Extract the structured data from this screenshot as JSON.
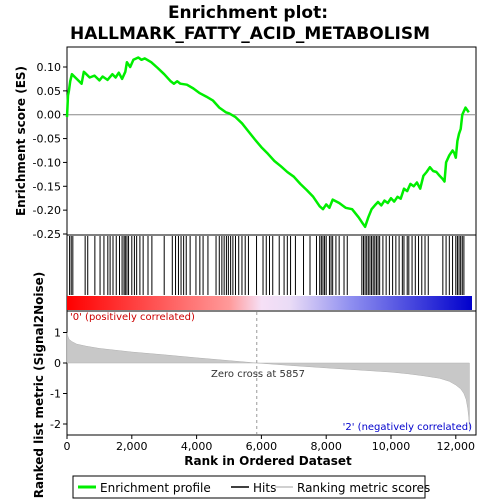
{
  "chart_data": {
    "type": "line",
    "title_line1": "Enrichment plot:",
    "title_line2": "HALLMARK_FATTY_ACID_METABOLISM",
    "es_ylabel": "Enrichment score (ES)",
    "metric_ylabel": "Ranked list metric (Signal2Noise)",
    "xlabel": "Rank in Ordered Dataset",
    "xlim": [
      0,
      12500
    ],
    "es_ylim": [
      -0.25,
      0.1
    ],
    "metric_ylim": [
      -2,
      1
    ],
    "x_ticks": [
      "0",
      "2,000",
      "4,000",
      "6,000",
      "8,000",
      "10,000",
      "12,000"
    ],
    "x_tick_values": [
      0,
      2000,
      4000,
      6000,
      8000,
      10000,
      12000
    ],
    "es_ticks": [
      "0.10",
      "0.05",
      "0.00",
      "-0.05",
      "-0.10",
      "-0.15",
      "-0.20",
      "-0.25"
    ],
    "es_tick_values": [
      0.1,
      0.05,
      0.0,
      -0.05,
      -0.1,
      -0.15,
      -0.2,
      -0.25
    ],
    "metric_ticks": [
      "1",
      "0",
      "-1",
      "-2"
    ],
    "metric_tick_values": [
      1,
      0,
      -1,
      -2
    ],
    "zero_cross_label": "Zero cross at 5857",
    "zero_cross": 5857,
    "pos_label": "'0' (positively correlated)",
    "neg_label": "'2' (negatively correlated)",
    "series": [
      {
        "name": "Enrichment profile",
        "color": "#00ee00",
        "x": [
          0,
          30,
          60,
          100,
          150,
          300,
          450,
          520,
          550,
          700,
          850,
          1000,
          1100,
          1250,
          1400,
          1500,
          1600,
          1700,
          1800,
          1850,
          1950,
          2050,
          2200,
          2300,
          2400,
          2600,
          2800,
          3000,
          3200,
          3300,
          3400,
          3500,
          3700,
          3900,
          4100,
          4300,
          4500,
          4700,
          4800,
          4900,
          5000,
          5200,
          5400,
          5600,
          5800,
          6000,
          6200,
          6400,
          6600,
          6800,
          7000,
          7200,
          7400,
          7600,
          7800,
          7900,
          8000,
          8100,
          8200,
          8400,
          8600,
          8800,
          9000,
          9100,
          9200,
          9300,
          9400,
          9500,
          9600,
          9700,
          9800,
          9900,
          10000,
          10100,
          10200,
          10300,
          10400,
          10500,
          10600,
          10700,
          10800,
          10900,
          11000,
          11100,
          11200,
          11300,
          11400,
          11500,
          11600,
          11650,
          11700,
          11800,
          11900,
          11950,
          12000,
          12050,
          12100,
          12150,
          12200,
          12300,
          12400
        ],
        "y": [
          -0.005,
          0.04,
          0.05,
          0.07,
          0.085,
          0.075,
          0.065,
          0.09,
          0.088,
          0.078,
          0.082,
          0.072,
          0.08,
          0.073,
          0.085,
          0.078,
          0.088,
          0.075,
          0.09,
          0.11,
          0.1,
          0.115,
          0.12,
          0.115,
          0.118,
          0.11,
          0.098,
          0.085,
          0.07,
          0.065,
          0.07,
          0.065,
          0.063,
          0.055,
          0.045,
          0.038,
          0.03,
          0.015,
          0.01,
          0.005,
          0.003,
          -0.005,
          -0.018,
          -0.035,
          -0.052,
          -0.068,
          -0.082,
          -0.097,
          -0.108,
          -0.12,
          -0.13,
          -0.145,
          -0.158,
          -0.172,
          -0.192,
          -0.198,
          -0.188,
          -0.195,
          -0.178,
          -0.185,
          -0.195,
          -0.198,
          -0.215,
          -0.225,
          -0.235,
          -0.215,
          -0.198,
          -0.19,
          -0.183,
          -0.19,
          -0.18,
          -0.185,
          -0.175,
          -0.182,
          -0.172,
          -0.176,
          -0.155,
          -0.16,
          -0.145,
          -0.15,
          -0.142,
          -0.155,
          -0.128,
          -0.12,
          -0.11,
          -0.118,
          -0.12,
          -0.128,
          -0.135,
          -0.14,
          -0.1,
          -0.085,
          -0.075,
          -0.08,
          -0.09,
          -0.055,
          -0.04,
          -0.03,
          0.0,
          0.015,
          0.005
        ]
      },
      {
        "name": "Hits",
        "color": "#000000",
        "positions": [
          80,
          130,
          180,
          560,
          640,
          860,
          1020,
          1140,
          1260,
          1330,
          1420,
          1520,
          1620,
          1700,
          1760,
          1800,
          1850,
          1900,
          2000,
          2080,
          2150,
          2250,
          2350,
          2500,
          2620,
          3000,
          3250,
          3350,
          3440,
          3520,
          3600,
          3680,
          3800,
          3980,
          4100,
          4200,
          4350,
          4600,
          4700,
          4780,
          4850,
          4920,
          4980,
          5050,
          5120,
          5200,
          5300,
          5400,
          5500,
          5600,
          5850,
          6050,
          6150,
          6250,
          6350,
          6550,
          6700,
          6800,
          6900,
          7050,
          7300,
          7500,
          7700,
          7800,
          7850,
          7900,
          7950,
          8000,
          8100,
          8150,
          8200,
          8300,
          8400,
          8550,
          8650,
          9100,
          9150,
          9200,
          9250,
          9300,
          9350,
          9400,
          9450,
          9500,
          9550,
          9600,
          9650,
          9750,
          9850,
          9950,
          10050,
          10150,
          10250,
          10350,
          10400,
          10500,
          10550,
          10650,
          10750,
          10850,
          10950,
          11050,
          11150,
          11600,
          11700,
          11800,
          11900,
          12000,
          12050,
          12100,
          12150,
          12200,
          12250
        ]
      },
      {
        "name": "Ranking metric scores",
        "color": "#c0c0c0",
        "x": [
          0,
          20,
          60,
          150,
          300,
          600,
          1000,
          1500,
          2000,
          3000,
          4000,
          5000,
          5857,
          6500,
          7000,
          8000,
          9000,
          10000,
          10500,
          11000,
          11500,
          11800,
          12000,
          12150,
          12250,
          12320,
          12370,
          12400,
          12420
        ],
        "y": [
          1.0,
          0.9,
          0.78,
          0.7,
          0.62,
          0.55,
          0.48,
          0.42,
          0.36,
          0.27,
          0.17,
          0.08,
          0.0,
          -0.05,
          -0.09,
          -0.16,
          -0.23,
          -0.3,
          -0.35,
          -0.42,
          -0.5,
          -0.6,
          -0.72,
          -0.85,
          -1.0,
          -1.2,
          -1.5,
          -1.8,
          -2.15
        ]
      }
    ]
  }
}
